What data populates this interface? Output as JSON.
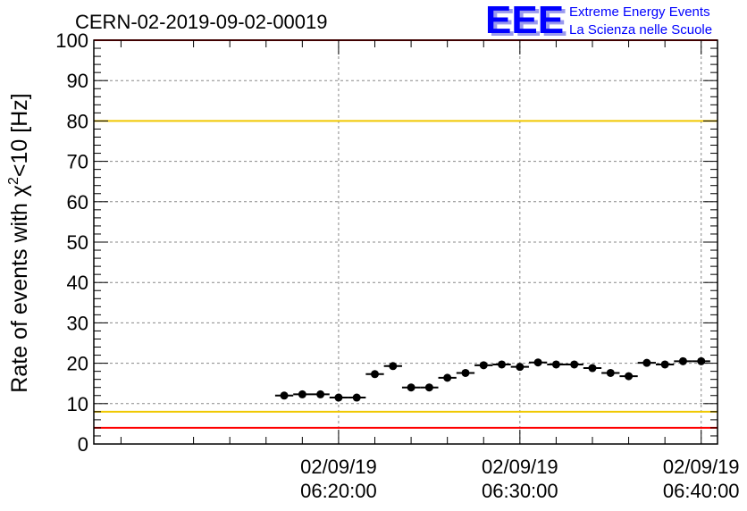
{
  "chart_data": {
    "type": "scatter",
    "title": "CERN-02-2019-09-02-00019",
    "ylabel_main": "Rate of events with χ",
    "ylabel_sup": "2",
    "ylabel_rest": "<10 [Hz]",
    "ylim": [
      0,
      100
    ],
    "yticks": [
      "0",
      "10",
      "20",
      "30",
      "40",
      "50",
      "60",
      "70",
      "80",
      "90",
      "100"
    ],
    "x_axis": {
      "type": "time",
      "range_minutes": [
        6.5,
        40.9
      ],
      "ticks": [
        {
          "date": "02/09/19",
          "time": "06:20:00",
          "minute": 20
        },
        {
          "date": "02/09/19",
          "time": "06:30:00",
          "minute": 30
        },
        {
          "date": "02/09/19",
          "time": "06:40:00",
          "minute": 40
        }
      ]
    },
    "grid": true,
    "reference_lines": [
      {
        "y": 100,
        "color": "#ff0000"
      },
      {
        "y": 80,
        "color": "#f0c800"
      },
      {
        "y": 8,
        "color": "#f0c800"
      },
      {
        "y": 4,
        "color": "#ff0000"
      }
    ],
    "series": [
      {
        "x_minutes": [
          17.0,
          18.0,
          19.0,
          20.0,
          21.0,
          22.0,
          23.0,
          24.0,
          25.0,
          26.0,
          27.0,
          28.0,
          29.0,
          30.0,
          31.0,
          32.0,
          33.0,
          34.0,
          35.0,
          36.0,
          37.0,
          38.0,
          39.0,
          40.0
        ],
        "y": [
          12,
          12.3,
          12.3,
          11.5,
          11.5,
          17.3,
          19.3,
          14,
          14,
          16.4,
          17.6,
          19.5,
          19.7,
          19.1,
          20.2,
          19.7,
          19.7,
          18.8,
          17.6,
          16.8,
          20.1,
          19.7,
          20.5,
          20.5
        ],
        "x_half_width": 0.5,
        "color": "#000000"
      }
    ]
  },
  "logo": {
    "mark": "EEE",
    "line1": "Extreme Energy Events",
    "line2": "La Scienza nelle Scuole",
    "color": "#0000ff",
    "shadow_color": "#9a9aee"
  }
}
